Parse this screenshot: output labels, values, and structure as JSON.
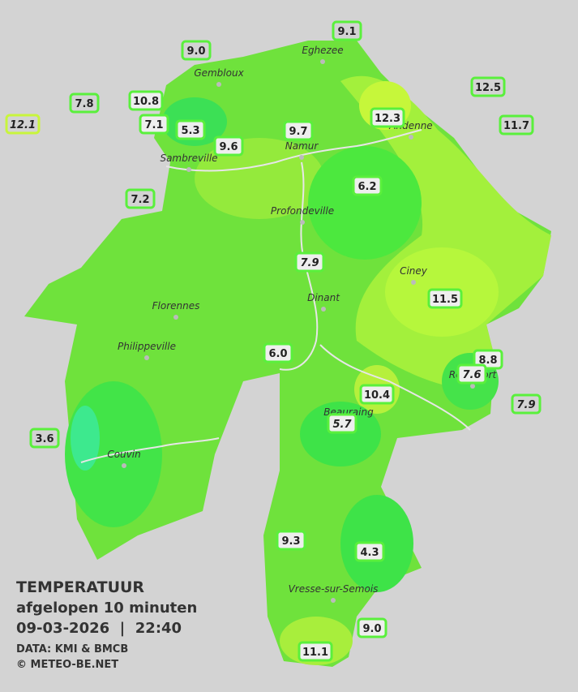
{
  "title": {
    "line1": "TEMPERATUUR",
    "line2": "afgelopen 10 minuten",
    "line3": "09-03-2026  |  22:40",
    "source": "DATA: KMI & BMCB",
    "copyright": "© METEO-BE.NET"
  },
  "towns": [
    "Eghezee",
    "Gembloux",
    "Andenne",
    "Namur",
    "Sambreville",
    "Profondeville",
    "Ciney",
    "Dinant",
    "Florennes",
    "Philippeville",
    "Rochefort",
    "Beauraing",
    "Couvin",
    "Vresse-sur-Semois"
  ],
  "stations": [
    {
      "label": "9.1",
      "italic": false
    },
    {
      "label": "9.0",
      "italic": false
    },
    {
      "label": "12.5",
      "italic": false
    },
    {
      "label": "7.8",
      "italic": false
    },
    {
      "label": "10.8",
      "italic": false
    },
    {
      "label": "12.1",
      "italic": true
    },
    {
      "label": "7.1",
      "italic": false
    },
    {
      "label": "5.3",
      "italic": false
    },
    {
      "label": "9.7",
      "italic": false
    },
    {
      "label": "12.3",
      "italic": false
    },
    {
      "label": "11.7",
      "italic": false
    },
    {
      "label": "9.6",
      "italic": false
    },
    {
      "label": "6.2",
      "italic": false
    },
    {
      "label": "7.2",
      "italic": false
    },
    {
      "label": "7.9",
      "italic": true
    },
    {
      "label": "11.5",
      "italic": false
    },
    {
      "label": "6.0",
      "italic": false
    },
    {
      "label": "8.8",
      "italic": false
    },
    {
      "label": "7.6",
      "italic": true
    },
    {
      "label": "10.4",
      "italic": false
    },
    {
      "label": "7.9",
      "italic": true
    },
    {
      "label": "5.7",
      "italic": true
    },
    {
      "label": "3.6",
      "italic": false
    },
    {
      "label": "9.3",
      "italic": false
    },
    {
      "label": "4.3",
      "italic": false
    },
    {
      "label": "9.0",
      "italic": false
    },
    {
      "label": "11.1",
      "italic": false
    }
  ]
}
